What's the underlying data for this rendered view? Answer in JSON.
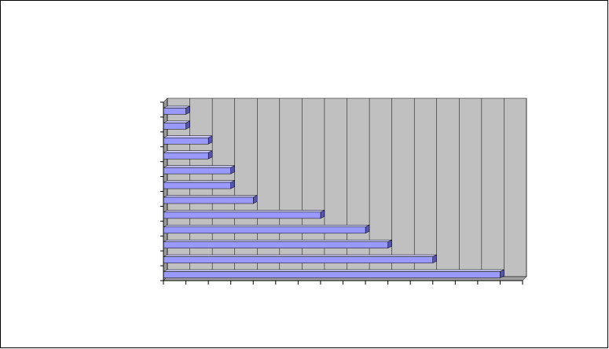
{
  "chart_data": {
    "type": "bar",
    "orientation": "horizontal",
    "categories": [
      null,
      null,
      null,
      null,
      null,
      null,
      null,
      null,
      null,
      null,
      null,
      null
    ],
    "values": [
      15,
      12,
      10,
      9,
      7,
      4,
      3,
      3,
      2,
      2,
      1,
      1
    ],
    "color": "#9999ff",
    "xlim": [
      0,
      16
    ],
    "xticks": [
      0,
      1,
      2,
      3,
      4,
      5,
      6,
      7,
      8,
      9,
      10,
      11,
      12,
      13,
      14,
      15,
      16
    ],
    "grid": true
  }
}
